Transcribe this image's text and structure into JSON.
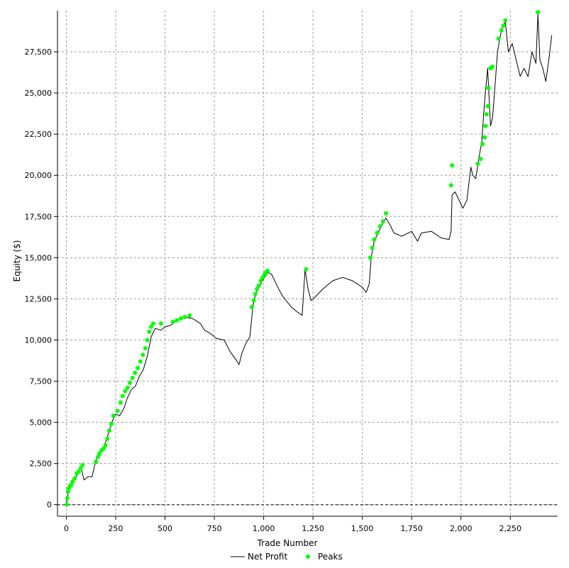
{
  "chart_data": {
    "type": "line",
    "title": "",
    "xlabel": "Trade Number",
    "ylabel": "Equity ($)",
    "xlim": [
      -45,
      2490
    ],
    "ylim": [
      -700,
      30000
    ],
    "x_ticks": [
      0,
      250,
      500,
      750,
      1000,
      1250,
      1500,
      1750,
      2000,
      2250
    ],
    "x_tick_labels": [
      "0",
      "250",
      "500",
      "750",
      "1,000",
      "1,250",
      "1,500",
      "1,750",
      "2,000",
      "2,250"
    ],
    "y_ticks": [
      0,
      2500,
      5000,
      7500,
      10000,
      12500,
      15000,
      17500,
      20000,
      22500,
      25000,
      27500
    ],
    "y_tick_labels": [
      "0",
      "2,500",
      "5,000",
      "7,500",
      "10,000",
      "12,500",
      "15,000",
      "17,500",
      "20,000",
      "22,500",
      "25,000",
      "27,500"
    ],
    "grid": true,
    "legend_position": "bottom-center",
    "colors": {
      "net_profit": "#000000",
      "peaks": "#00ff00",
      "grid": "#999999"
    },
    "series": [
      {
        "name": "Net Profit",
        "type": "line",
        "x": [
          0,
          10,
          20,
          30,
          45,
          60,
          75,
          90,
          110,
          130,
          150,
          170,
          190,
          210,
          230,
          250,
          270,
          290,
          310,
          330,
          350,
          370,
          390,
          410,
          430,
          450,
          480,
          500,
          530,
          560,
          600,
          640,
          680,
          700,
          730,
          760,
          800,
          830,
          860,
          875,
          890,
          910,
          930,
          945,
          955,
          970,
          990,
          1010,
          1025,
          1040,
          1060,
          1080,
          1100,
          1120,
          1140,
          1170,
          1195,
          1210,
          1225,
          1240,
          1260,
          1300,
          1350,
          1400,
          1450,
          1500,
          1520,
          1535,
          1545,
          1560,
          1580,
          1600,
          1620,
          1640,
          1660,
          1700,
          1750,
          1780,
          1800,
          1850,
          1900,
          1940,
          1950,
          1955,
          1970,
          1990,
          2010,
          2030,
          2050,
          2060,
          2075,
          2090,
          2105,
          2120,
          2135,
          2150,
          2160,
          2170,
          2185,
          2200,
          2210,
          2225,
          2240,
          2260,
          2280,
          2300,
          2320,
          2340,
          2360,
          2380,
          2390,
          2400,
          2415,
          2430,
          2445,
          2460
        ],
        "y": [
          0,
          800,
          1100,
          1400,
          1600,
          1900,
          2200,
          1500,
          1700,
          1700,
          2700,
          3200,
          3500,
          4200,
          5000,
          5500,
          5400,
          5800,
          6500,
          7000,
          7200,
          7800,
          8200,
          9000,
          10200,
          10700,
          10600,
          10800,
          10900,
          11200,
          11400,
          11300,
          11000,
          10600,
          10400,
          10100,
          10000,
          9300,
          8800,
          8500,
          9200,
          9800,
          10200,
          12000,
          12600,
          13100,
          13500,
          13900,
          14100,
          14000,
          13500,
          13000,
          12600,
          12300,
          12000,
          11700,
          11500,
          14300,
          13100,
          12400,
          12600,
          13100,
          13600,
          13800,
          13600,
          13200,
          12900,
          13400,
          15000,
          16000,
          16500,
          17000,
          17400,
          17000,
          16500,
          16300,
          16600,
          16000,
          16500,
          16600,
          16200,
          16100,
          16600,
          18800,
          19000,
          18500,
          18000,
          18500,
          20500,
          20000,
          19800,
          21000,
          22000,
          24500,
          26500,
          23000,
          23500,
          25000,
          27500,
          28500,
          29000,
          29300,
          27500,
          28000,
          27000,
          26000,
          26500,
          26000,
          27500,
          26800,
          29800,
          27000,
          26500,
          25700,
          27000,
          28500
        ],
        "data_labels": []
      },
      {
        "name": "Peaks",
        "type": "scatter",
        "x": [
          2,
          5,
          9,
          13,
          18,
          25,
          32,
          42,
          52,
          62,
          72,
          82,
          150,
          160,
          168,
          178,
          188,
          198,
          208,
          218,
          228,
          238,
          260,
          275,
          285,
          298,
          310,
          322,
          335,
          348,
          362,
          375,
          388,
          400,
          410,
          420,
          430,
          440,
          480,
          540,
          560,
          580,
          600,
          625,
          940,
          950,
          958,
          966,
          975,
          985,
          995,
          1005,
          1012,
          1020,
          1215,
          1540,
          1550,
          1560,
          1575,
          1590,
          1605,
          1620,
          1950,
          1955,
          2085,
          2100,
          2110,
          2120,
          2125,
          2130,
          2135,
          2140,
          2150,
          2160,
          2190,
          2205,
          2215,
          2225,
          2390
        ],
        "y": [
          0,
          400,
          800,
          1000,
          1150,
          1200,
          1400,
          1600,
          1900,
          2000,
          2200,
          2400,
          2600,
          2900,
          3100,
          3300,
          3400,
          3600,
          4000,
          4500,
          4900,
          5400,
          5700,
          6200,
          6600,
          6900,
          7100,
          7400,
          7700,
          8000,
          8300,
          8700,
          9100,
          9500,
          10000,
          10500,
          10800,
          11000,
          11000,
          11100,
          11200,
          11300,
          11400,
          11500,
          12000,
          12400,
          12800,
          13100,
          13300,
          13600,
          13800,
          14000,
          14100,
          14200,
          14300,
          15000,
          15600,
          16100,
          16500,
          16900,
          17200,
          17700,
          19400,
          20600,
          20700,
          21000,
          21900,
          22300,
          23000,
          23700,
          24200,
          25300,
          26500,
          26600,
          28300,
          28800,
          29100,
          29400,
          29900
        ],
        "data_labels": []
      }
    ]
  }
}
